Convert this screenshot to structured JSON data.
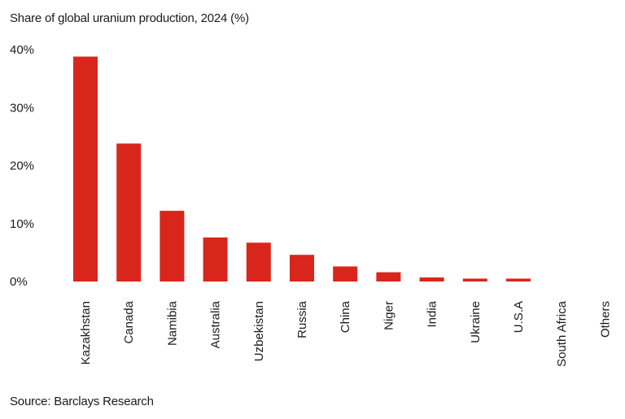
{
  "chart_data": {
    "type": "bar",
    "title": "Share of global uranium production, 2024 (%)",
    "source": "Source: Barclays Research",
    "categories": [
      "Kazakhstan",
      "Canada",
      "Namibia",
      "Australia",
      "Uzbekistan",
      "Russia",
      "China",
      "Niger",
      "India",
      "Ukraine",
      "U.S.A",
      "South Africa",
      "Others"
    ],
    "values": [
      38.8,
      23.8,
      12.2,
      7.6,
      6.7,
      4.6,
      2.6,
      1.6,
      0.7,
      0.5,
      0.5,
      0.0,
      0.0
    ],
    "yticks": [
      "0%",
      "10%",
      "20%",
      "30%",
      "40%"
    ],
    "ylim": [
      0,
      40
    ],
    "xlabel": "",
    "ylabel": "",
    "bar_color": "#d9261c",
    "grid": false,
    "legend": "none"
  }
}
